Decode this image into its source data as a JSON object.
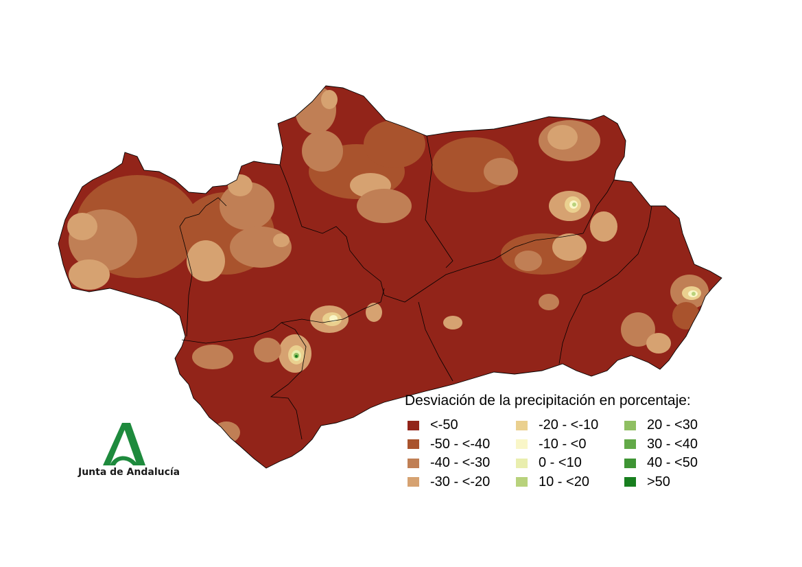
{
  "map": {
    "legend_title": "Desviación de la precipitación en porcentaje:",
    "legend": [
      {
        "label": "<-50",
        "color": "#922419"
      },
      {
        "label": "-50 - <-40",
        "color": "#a9532d"
      },
      {
        "label": "-40 - <-30",
        "color": "#c07f55"
      },
      {
        "label": "-30 - <-20",
        "color": "#d6a271"
      },
      {
        "label": "-20 - <-10",
        "color": "#ead08f"
      },
      {
        "label": "-10 - <0",
        "color": "#f9f6c8"
      },
      {
        "label": "0 - <10",
        "color": "#e9eeae"
      },
      {
        "label": "10 - <20",
        "color": "#b8d27c"
      },
      {
        "label": "20 - <30",
        "color": "#8fbf62"
      },
      {
        "label": "30 - <40",
        "color": "#62a948"
      },
      {
        "label": "40 - <50",
        "color": "#3e9434"
      },
      {
        "label": ">50",
        "color": "#187f1f"
      }
    ]
  },
  "logo": {
    "text": "Junta de Andalucía",
    "icon": "junta-andalucia-logo-icon",
    "color": "#1e8a3d"
  }
}
